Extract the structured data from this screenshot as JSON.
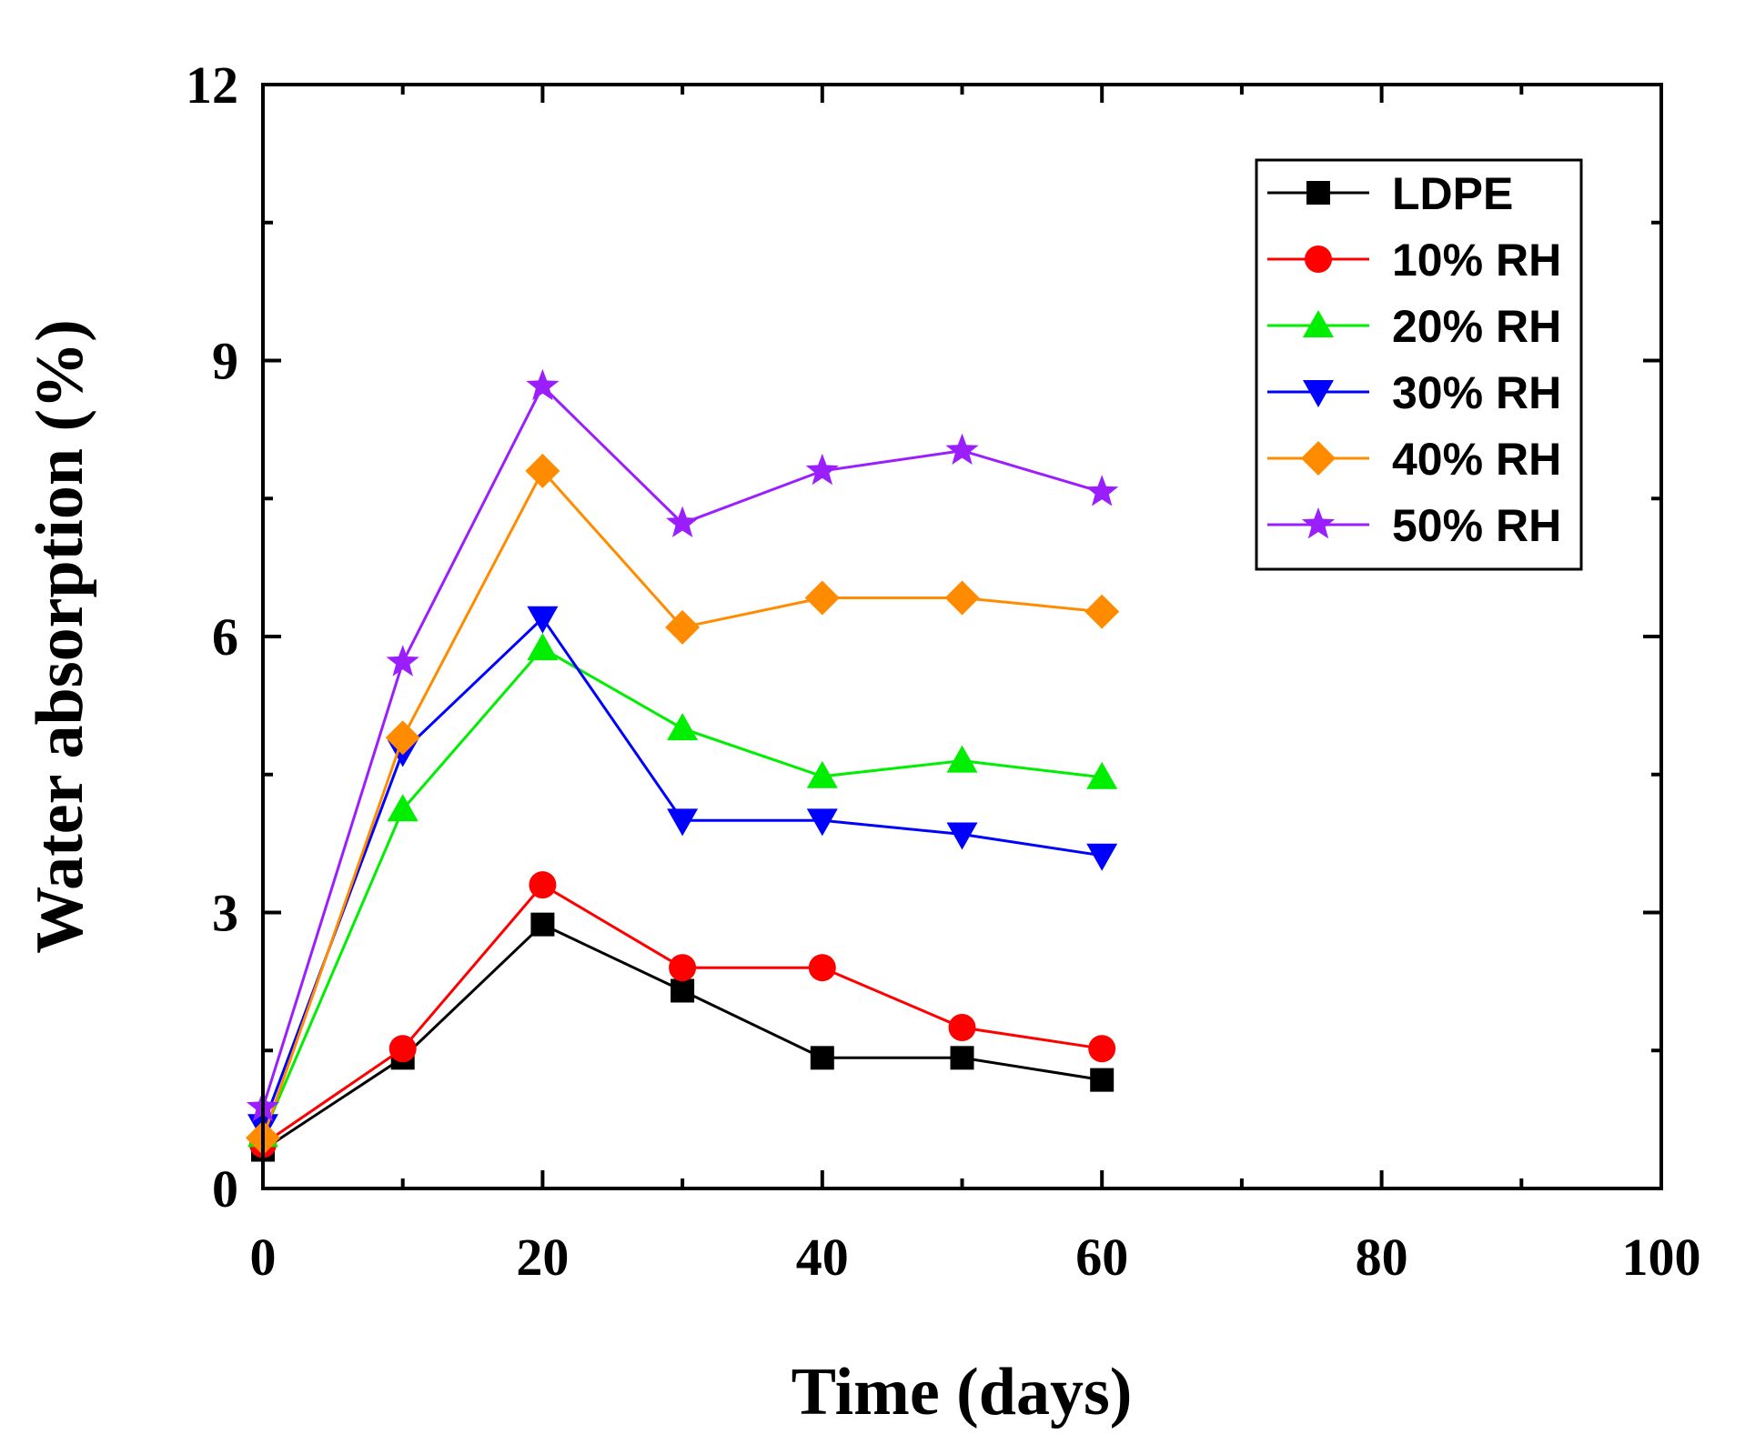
{
  "chart_data": {
    "type": "line",
    "xlabel": "Time (days)",
    "ylabel": "Water absorption (%)",
    "xlim": [
      0,
      100
    ],
    "ylim": [
      0,
      12
    ],
    "xticks": [
      0,
      20,
      40,
      60,
      80,
      100
    ],
    "xtick_labels": [
      "0",
      "20",
      "40",
      "60",
      "80",
      "100"
    ],
    "yticks": [
      0,
      3,
      6,
      9,
      12
    ],
    "ytick_labels": [
      "0",
      "3",
      "6",
      "9",
      "12"
    ],
    "legend_position": "top-right",
    "x": [
      0,
      10,
      20,
      30,
      40,
      50,
      60
    ],
    "series": [
      {
        "name": "LDPE",
        "color": "#000000",
        "marker": "square",
        "values": [
          0.42,
          1.42,
          2.87,
          2.15,
          1.42,
          1.42,
          1.18
        ]
      },
      {
        "name": "10% RH",
        "color": "#ff0000",
        "marker": "circle",
        "values": [
          0.48,
          1.52,
          3.3,
          2.4,
          2.4,
          1.75,
          1.52
        ]
      },
      {
        "name": "20% RH",
        "color": "#00ee00",
        "marker": "triangle-up",
        "values": [
          0.58,
          4.12,
          5.87,
          5.0,
          4.48,
          4.65,
          4.47
        ]
      },
      {
        "name": "30% RH",
        "color": "#0000ff",
        "marker": "triangle-down",
        "values": [
          0.68,
          4.75,
          6.2,
          4.0,
          4.0,
          3.85,
          3.62
        ]
      },
      {
        "name": "40% RH",
        "color": "#ff8c00",
        "marker": "diamond",
        "values": [
          0.55,
          4.9,
          7.8,
          6.1,
          6.42,
          6.42,
          6.27
        ]
      },
      {
        "name": "50% RH",
        "color": "#9b1eff",
        "marker": "star",
        "values": [
          0.88,
          5.72,
          8.72,
          7.23,
          7.8,
          8.02,
          7.57
        ]
      }
    ]
  }
}
